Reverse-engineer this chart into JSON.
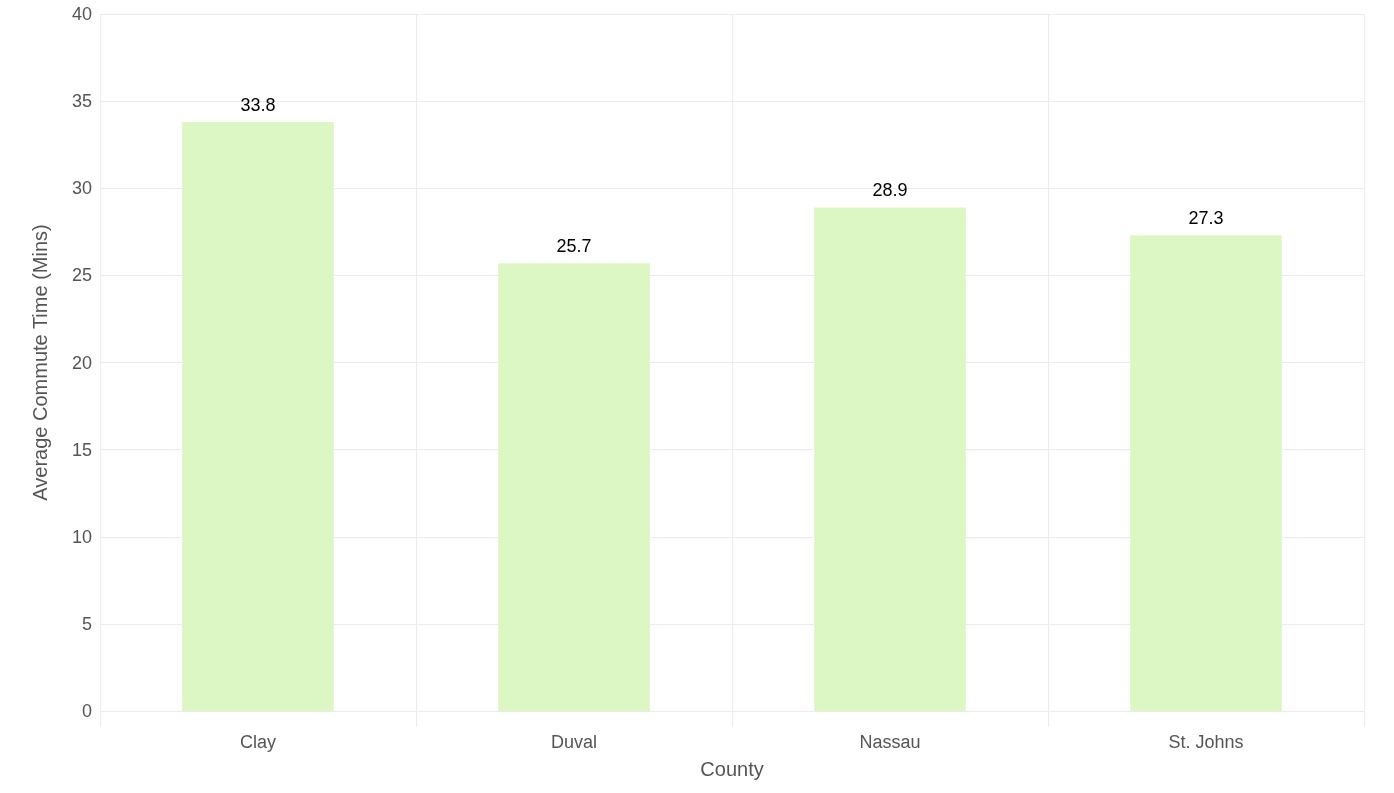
{
  "chart_data": {
    "type": "bar",
    "xlabel": "County",
    "ylabel": "Average Commute Time (Mins)",
    "categories": [
      "Clay",
      "Duval",
      "Nassau",
      "St. Johns"
    ],
    "values": [
      33.8,
      25.7,
      28.9,
      27.3
    ],
    "color": "#ddf7c4",
    "ylim": [
      0,
      40
    ],
    "yticks": [
      0,
      5,
      10,
      15,
      20,
      25,
      30,
      35,
      40
    ],
    "grid": true,
    "data_labels": true
  }
}
